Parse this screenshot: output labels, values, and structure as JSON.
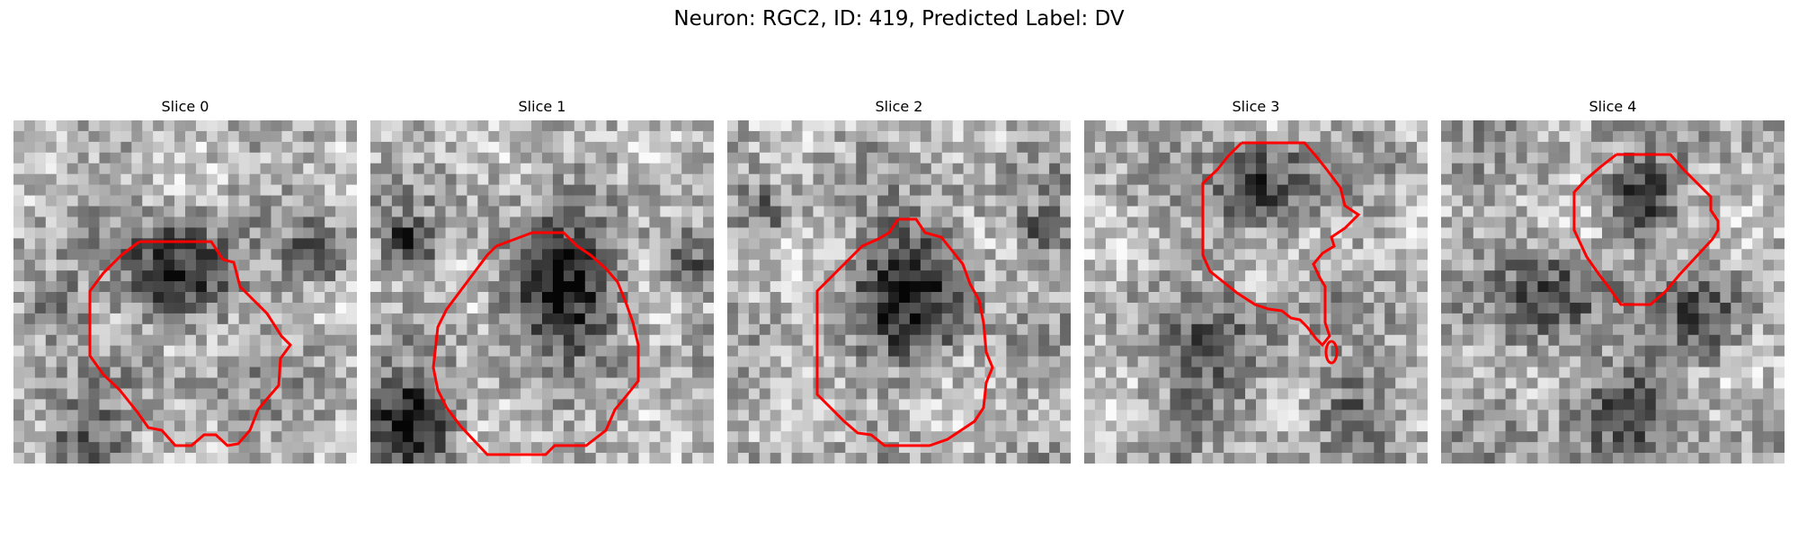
{
  "figure": {
    "title": "Neuron: RGC2, ID: 419, Predicted Label: DV"
  },
  "panels": [
    {
      "title": "Slice 0"
    },
    {
      "title": "Slice 1"
    },
    {
      "title": "Slice 2"
    },
    {
      "title": "Slice 3"
    },
    {
      "title": "Slice 4"
    }
  ],
  "colors": {
    "contour": "#ff0000",
    "image_colormap": "grayscale"
  }
}
